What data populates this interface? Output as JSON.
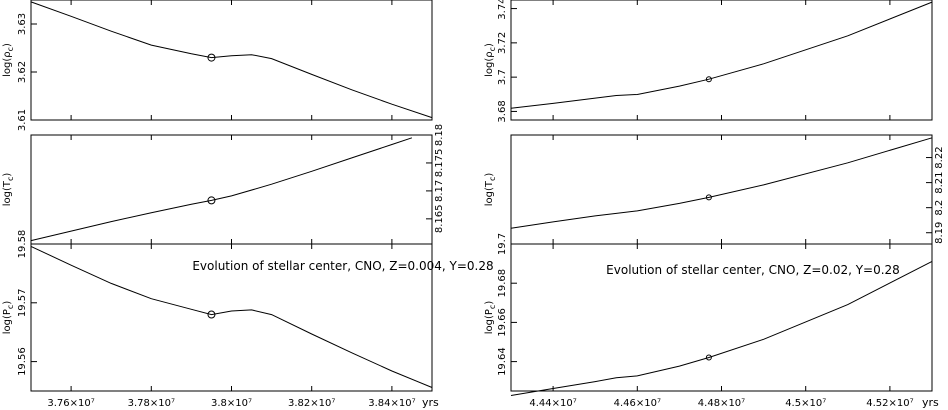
{
  "colors": {
    "line": "#000000",
    "background": "#ffffff"
  },
  "chart_data": [
    {
      "type": "line",
      "title": "Evolution of stellar center, CNO, Z=0.004, Y=0.28",
      "xlabel": "yrs",
      "xlim": [
        37500000,
        38500000
      ],
      "x_ticks": [
        37600000,
        37800000,
        38000000,
        38200000,
        38400000
      ],
      "x_tick_labels": [
        "3.76×10⁷",
        "3.78×10⁷",
        "3.8×10⁷",
        "3.82×10⁷",
        "3.84×10⁷"
      ],
      "marker_x": 37950000,
      "panels": [
        {
          "ylabel": "log(ρc)",
          "ylabel_main": "log(ρ",
          "ylabel_sub": "c",
          "ylim": [
            3.61,
            3.635
          ],
          "yticks": [
            3.61,
            3.62,
            3.63
          ],
          "ytick_labels": [
            "3.61",
            "3.62",
            "3.63"
          ],
          "tick_side": "left",
          "x": [
            37500000,
            37600000,
            37700000,
            37800000,
            37900000,
            37950000,
            38000000,
            38050000,
            38100000,
            38200000,
            38300000,
            38400000,
            38500000
          ],
          "values": [
            3.6346,
            3.6316,
            3.6285,
            3.6256,
            3.6238,
            3.623,
            3.6234,
            3.6236,
            3.6228,
            3.6195,
            3.6163,
            3.6133,
            3.6105
          ],
          "marker_value": 3.623
        },
        {
          "ylabel": "log(Tc)",
          "ylabel_main": "log(T",
          "ylabel_sub": "c",
          "ylim": [
            8.1605,
            8.18
          ],
          "yticks": [
            8.165,
            8.17,
            8.175,
            8.18
          ],
          "ytick_labels": [
            "8.165",
            "8.17",
            "8.175",
            "8.18"
          ],
          "tick_side": "right",
          "x": [
            37500000,
            37600000,
            37700000,
            37800000,
            37900000,
            37950000,
            38000000,
            38100000,
            38200000,
            38300000,
            38400000,
            38450000
          ],
          "values": [
            8.1611,
            8.1628,
            8.1645,
            8.1661,
            8.1676,
            8.1683,
            8.1691,
            8.1712,
            8.1735,
            8.1759,
            8.1783,
            8.1795
          ],
          "marker_value": 8.1683
        },
        {
          "ylabel": "log(Pc)",
          "ylabel_main": "log(P",
          "ylabel_sub": "c",
          "ylim": [
            19.555,
            19.58
          ],
          "yticks": [
            19.56,
            19.57,
            19.58
          ],
          "ytick_labels": [
            "19.56",
            "19.57",
            "19.58"
          ],
          "tick_side": "left",
          "x": [
            37500000,
            37600000,
            37700000,
            37800000,
            37900000,
            37950000,
            38000000,
            38050000,
            38100000,
            38200000,
            38300000,
            38400000,
            38500000
          ],
          "values": [
            19.5796,
            19.5764,
            19.5733,
            19.5707,
            19.5689,
            19.568,
            19.5686,
            19.5688,
            19.568,
            19.5647,
            19.5615,
            19.5584,
            19.5556
          ],
          "marker_value": 19.568
        }
      ]
    },
    {
      "type": "line",
      "title": "Evolution of stellar center, CNO, Z=0.02, Y=0.28",
      "xlabel": "yrs",
      "xlim": [
        44300000,
        45300000
      ],
      "x_ticks": [
        44400000,
        44600000,
        44800000,
        45000000,
        45200000
      ],
      "x_tick_labels": [
        "4.44×10⁷",
        "4.46×10⁷",
        "4.48×10⁷",
        "4.5×10⁷",
        "4.52×10⁷"
      ],
      "marker_x": 44770000,
      "panels": [
        {
          "ylabel": "log(ρc)",
          "ylabel_main": "log(ρ",
          "ylabel_sub": "c",
          "ylim": [
            3.675,
            3.745
          ],
          "yticks": [
            3.68,
            3.7,
            3.72,
            3.74
          ],
          "ytick_labels": [
            "3.68",
            "3.7",
            "3.72",
            "3.74"
          ],
          "tick_side": "left",
          "x": [
            44300000,
            44400000,
            44500000,
            44550000,
            44600000,
            44700000,
            44770000,
            44900000,
            45100000,
            45300000
          ],
          "values": [
            3.6818,
            3.6847,
            3.6878,
            3.6893,
            3.6899,
            3.6948,
            3.6988,
            3.7078,
            3.7241,
            3.7438
          ],
          "marker_value": 3.6988
        },
        {
          "ylabel": "log(Tc)",
          "ylabel_main": "log(T",
          "ylabel_sub": "c",
          "ylim": [
            8.1855,
            8.229
          ],
          "yticks": [
            8.19,
            8.2,
            8.21,
            8.22
          ],
          "ytick_labels": [
            "8.19",
            "8.2",
            "8.21",
            "8.22"
          ],
          "tick_side": "right",
          "x": [
            44300000,
            44400000,
            44500000,
            44550000,
            44600000,
            44700000,
            44770000,
            44900000,
            45100000,
            45300000
          ],
          "values": [
            8.1918,
            8.1943,
            8.1967,
            8.1977,
            8.1987,
            8.2017,
            8.2041,
            8.2091,
            8.2179,
            8.2279
          ],
          "marker_value": 8.2041
        },
        {
          "ylabel": "log(Pc)",
          "ylabel_main": "log(P",
          "ylabel_sub": "c",
          "ylim": [
            19.625,
            19.7
          ],
          "yticks": [
            19.64,
            19.66,
            19.68,
            19.7
          ],
          "ytick_labels": [
            "19.64",
            "19.66",
            "19.68",
            "19.7"
          ],
          "tick_side": "left",
          "x": [
            44300000,
            44400000,
            44500000,
            44550000,
            44600000,
            44700000,
            44770000,
            44900000,
            45100000,
            45300000
          ],
          "values": [
            19.6227,
            19.6263,
            19.6298,
            19.6318,
            19.6327,
            19.6377,
            19.6421,
            19.6514,
            19.6691,
            19.6911
          ],
          "marker_value": 19.6421
        }
      ]
    }
  ]
}
